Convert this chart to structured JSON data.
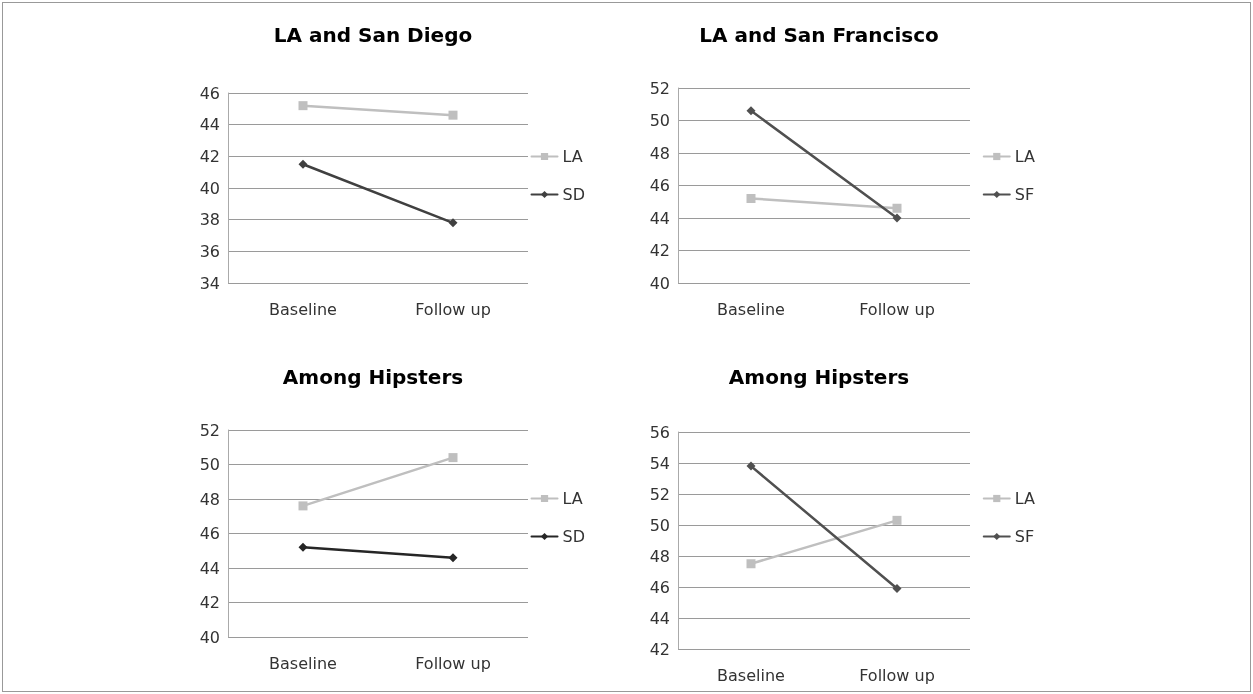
{
  "chart_data": [
    {
      "type": "line",
      "title": "LA and San Diego",
      "categories": [
        "Baseline",
        "Follow up"
      ],
      "ylim": [
        34,
        46
      ],
      "yticks": [
        34,
        36,
        38,
        40,
        42,
        44,
        46
      ],
      "grid": "y",
      "legend": "right",
      "series": [
        {
          "name": "LA",
          "color": "#bfbfbf",
          "marker": "square",
          "values": [
            45.2,
            44.6
          ]
        },
        {
          "name": "SD",
          "color": "#404040",
          "marker": "diamond",
          "values": [
            41.5,
            37.8
          ]
        }
      ]
    },
    {
      "type": "line",
      "title": "LA and San Francisco",
      "categories": [
        "Baseline",
        "Follow up"
      ],
      "ylim": [
        40,
        52
      ],
      "yticks": [
        40,
        42,
        44,
        46,
        48,
        50,
        52
      ],
      "grid": "y",
      "legend": "right",
      "series": [
        {
          "name": "LA",
          "color": "#bfbfbf",
          "marker": "square",
          "values": [
            45.2,
            44.6
          ]
        },
        {
          "name": "SF",
          "color": "#505050",
          "marker": "diamond",
          "values": [
            50.6,
            44.0
          ]
        }
      ]
    },
    {
      "type": "line",
      "title": "Among Hipsters",
      "categories": [
        "Baseline",
        "Follow up"
      ],
      "ylim": [
        40,
        52
      ],
      "yticks": [
        40,
        42,
        44,
        46,
        48,
        50,
        52
      ],
      "grid": "y",
      "legend": "right",
      "series": [
        {
          "name": "LA",
          "color": "#bfbfbf",
          "marker": "square",
          "values": [
            47.6,
            50.4
          ]
        },
        {
          "name": "SD",
          "color": "#262626",
          "marker": "diamond",
          "values": [
            45.2,
            44.6
          ]
        }
      ]
    },
    {
      "type": "line",
      "title": "Among Hipsters",
      "categories": [
        "Baseline",
        "Follow up"
      ],
      "ylim": [
        42,
        56
      ],
      "yticks": [
        42,
        44,
        46,
        48,
        50,
        52,
        54,
        56
      ],
      "grid": "y",
      "legend": "right",
      "series": [
        {
          "name": "LA",
          "color": "#bfbfbf",
          "marker": "square",
          "values": [
            47.5,
            50.3
          ]
        },
        {
          "name": "SF",
          "color": "#505050",
          "marker": "diamond",
          "values": [
            53.8,
            45.9
          ]
        }
      ]
    }
  ]
}
